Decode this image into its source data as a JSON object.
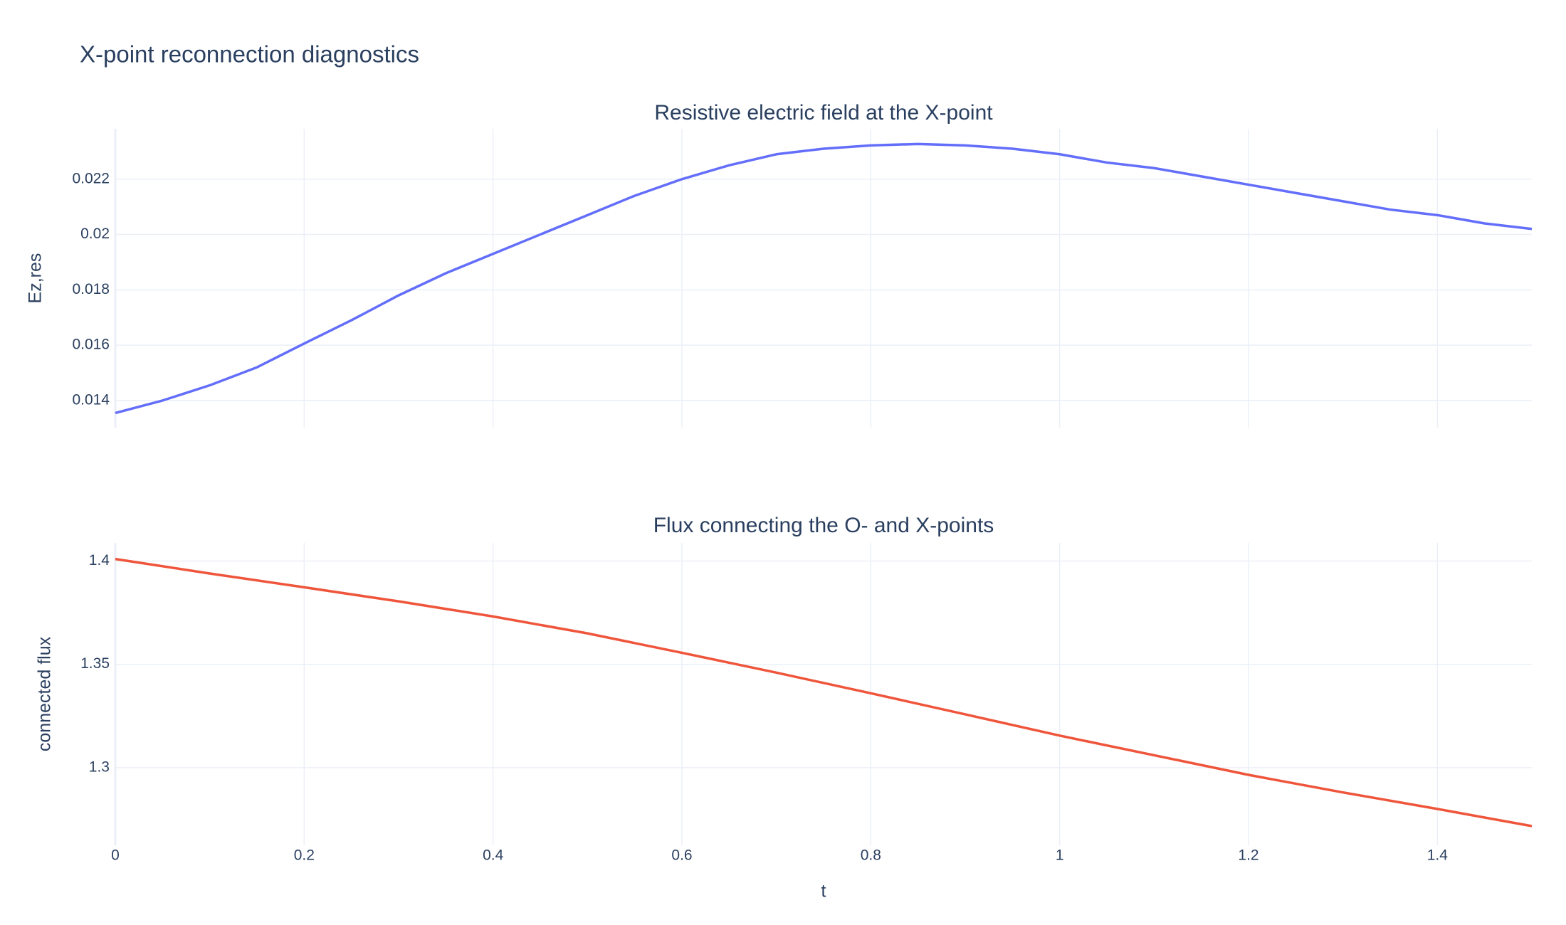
{
  "title": "X-point reconnection diagnostics",
  "chart_data": [
    {
      "type": "line",
      "title": "Resistive electric field at the X-point",
      "y_label": "Ez,res",
      "x": [
        0,
        0.05,
        0.1,
        0.15,
        0.2,
        0.25,
        0.3,
        0.35,
        0.4,
        0.45,
        0.5,
        0.55,
        0.6,
        0.65,
        0.7,
        0.75,
        0.8,
        0.85,
        0.9,
        0.95,
        1.0,
        1.05,
        1.1,
        1.15,
        1.2,
        1.25,
        1.3,
        1.35,
        1.4,
        1.45,
        1.5
      ],
      "series": [
        {
          "name": "Ez,res",
          "color": "#636efa",
          "values": [
            0.01355,
            0.014,
            0.01455,
            0.0152,
            0.01606,
            0.0169,
            0.0178,
            0.0186,
            0.0193,
            0.02,
            0.0207,
            0.0214,
            0.022,
            0.0225,
            0.0229,
            0.0231,
            0.02322,
            0.02327,
            0.02322,
            0.0231,
            0.0229,
            0.0226,
            0.0224,
            0.0221,
            0.0218,
            0.0215,
            0.0212,
            0.0209,
            0.0207,
            0.0204,
            0.0202
          ]
        }
      ],
      "xlim": [
        0,
        1.5
      ],
      "xticks": [
        0,
        0.2,
        0.4,
        0.6,
        0.8,
        1,
        1.2,
        1.4
      ],
      "ylim": [
        0.01302,
        0.02382
      ],
      "yticks": [
        0.014,
        0.016,
        0.018,
        0.02,
        0.022
      ],
      "grid": true
    },
    {
      "type": "line",
      "title": "Flux connecting the O- and X-points",
      "y_label": "connected flux",
      "x_label": "t",
      "x": [
        0,
        0.1,
        0.2,
        0.3,
        0.4,
        0.5,
        0.6,
        0.7,
        0.8,
        0.9,
        1.0,
        1.1,
        1.2,
        1.3,
        1.4,
        1.5
      ],
      "series": [
        {
          "name": "connected flux",
          "color": "#EF553B",
          "values": [
            1.401,
            1.394,
            1.3873,
            1.3805,
            1.3732,
            1.365,
            1.3556,
            1.346,
            1.336,
            1.3258,
            1.3155,
            1.306,
            1.2965,
            1.288,
            1.28,
            1.2717
          ]
        }
      ],
      "xlim": [
        0,
        1.5
      ],
      "xticks": [
        0,
        0.2,
        0.4,
        0.6,
        0.8,
        1,
        1.2,
        1.4
      ],
      "ylim": [
        1.2624,
        1.4088
      ],
      "yticks": [
        1.3,
        1.35,
        1.4
      ],
      "grid": true
    }
  ]
}
